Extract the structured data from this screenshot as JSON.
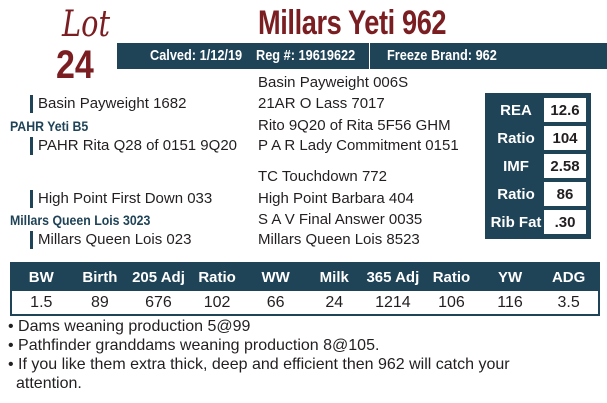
{
  "lot": {
    "script": "Lot",
    "number": "24"
  },
  "title": "Millars Yeti 962",
  "band": {
    "calved": "Calved: 1/12/19",
    "reg": "Reg #: 19619622",
    "freeze": "Freeze Brand: 962"
  },
  "pedigree": {
    "sire": "PAHR Yeti B5",
    "sire_sire": "Basin Payweight 1682",
    "sire_sire_sire": "Basin Payweight 006S",
    "sire_sire_dam": "21AR O Lass 7017",
    "sire_dam": "PAHR Rita Q28 of 0151 9Q20",
    "sire_dam_sire": "Rito 9Q20 of Rita 5F56 GHM",
    "sire_dam_dam": "P A R Lady Commitment 0151",
    "dam": "Millars Queen Lois 3023",
    "dam_sire": "High Point First Down 033",
    "dam_sire_sire": "TC Touchdown 772",
    "dam_sire_dam": "High Point Barbara 404",
    "dam_dam": "Millars Queen Lois 023",
    "dam_dam_sire": "S A V Final Answer 0035",
    "dam_dam_dam": "Millars Queen Lois 8523"
  },
  "carcass": [
    {
      "label": "REA",
      "value": "12.6"
    },
    {
      "label": "Ratio",
      "value": "104"
    },
    {
      "label": "IMF",
      "value": "2.58"
    },
    {
      "label": "Ratio",
      "value": "86"
    },
    {
      "label": "Rib Fat",
      "value": ".30"
    }
  ],
  "performance": {
    "headers": [
      "BW",
      "Birth",
      "205 Adj",
      "Ratio",
      "WW",
      "Milk",
      "365 Adj",
      "Ratio",
      "YW",
      "ADG"
    ],
    "values": [
      "1.5",
      "89",
      "676",
      "102",
      "66",
      "24",
      "1214",
      "106",
      "116",
      "3.5"
    ]
  },
  "notes": [
    "• Dams weaning production 5@99",
    "• Pathfinder granddams weaning production 8@105.",
    "• If you like them extra thick, deep and efficient then 962 will catch your",
    "attention."
  ]
}
